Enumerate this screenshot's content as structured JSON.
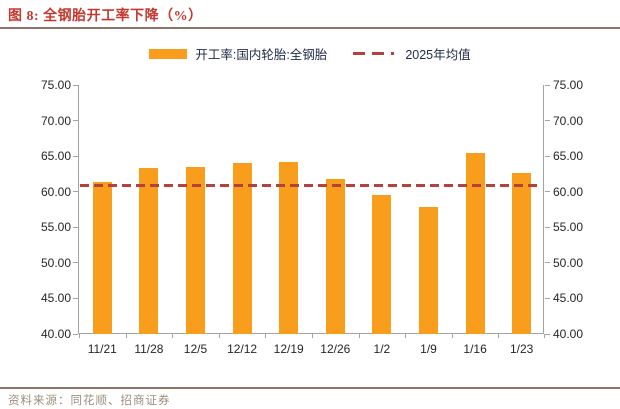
{
  "header": {
    "title": "图 8:  全钢胎开工率下降（%）"
  },
  "legend": {
    "bar_label": "开工率:国内轮胎:全钢胎",
    "line_label": "2025年均值"
  },
  "footer": {
    "source": "资料来源：同花顺、招商证券"
  },
  "colors": {
    "title": "#C4392F",
    "rule": "#8D7466",
    "bar": "#F99E1C",
    "mean_line": "#B5413C",
    "axis": "#A3A3A3",
    "axis_text": "#262626",
    "legend_text": "#1E2A47",
    "source_text": "#9C8D7D"
  },
  "chart_data": {
    "type": "bar",
    "title": "全钢胎开工率下降（%）",
    "categories": [
      "11/21",
      "11/28",
      "12/5",
      "12/12",
      "12/19",
      "12/26",
      "1/2",
      "1/9",
      "1/16",
      "1/23"
    ],
    "series": [
      {
        "name": "开工率:国内轮胎:全钢胎",
        "type": "bar",
        "values": [
          61.3,
          63.3,
          63.5,
          64.0,
          64.2,
          61.8,
          59.6,
          57.8,
          65.5,
          62.6
        ]
      },
      {
        "name": "2025年均值",
        "type": "dashed-line",
        "value": 60.9
      }
    ],
    "ylim": [
      40,
      75
    ],
    "yticks": [
      40,
      45,
      50,
      55,
      60,
      65,
      70,
      75
    ],
    "ytick_labels": [
      "40.00",
      "45.00",
      "50.00",
      "55.00",
      "60.00",
      "65.00",
      "70.00",
      "75.00"
    ],
    "dual_axis": true,
    "grid": false,
    "legend_position": "top"
  }
}
